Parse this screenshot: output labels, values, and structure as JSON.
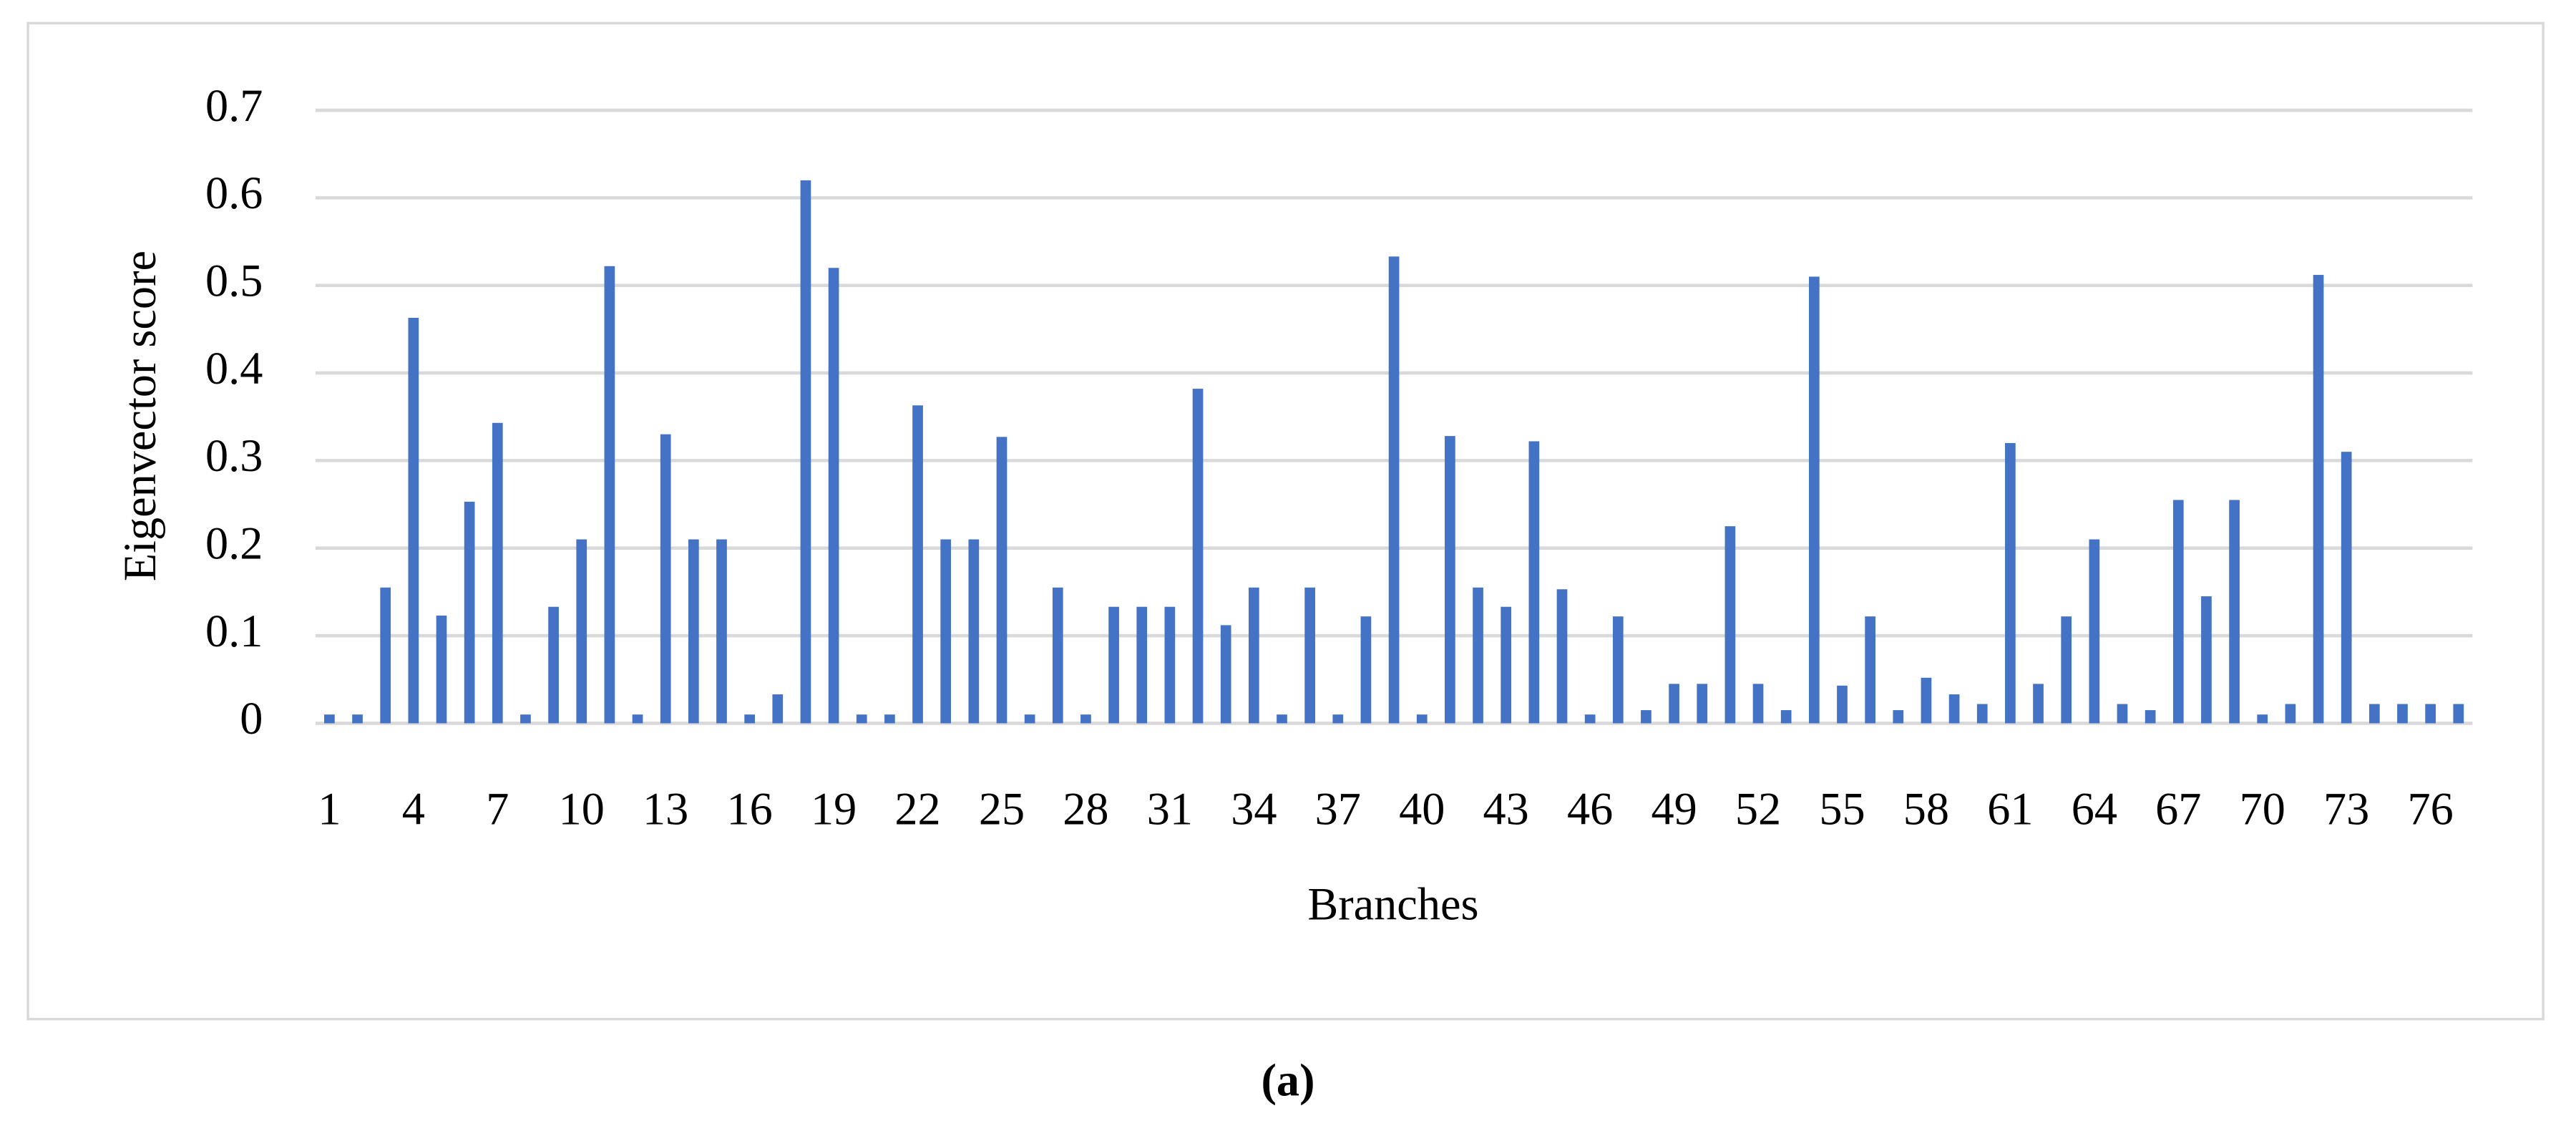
{
  "chart_data": {
    "type": "bar",
    "x_label": "Branches",
    "y_label": "Eigenvector score",
    "caption": "(a)",
    "categories": [
      "1",
      null,
      null,
      "4",
      null,
      null,
      "7",
      null,
      null,
      "10",
      null,
      null,
      "13",
      null,
      null,
      "16",
      null,
      null,
      "19",
      null,
      null,
      "22",
      null,
      null,
      "25",
      null,
      null,
      "28",
      null,
      null,
      "31",
      null,
      null,
      "34",
      null,
      null,
      "37",
      null,
      null,
      "40",
      null,
      null,
      "43",
      null,
      null,
      "46",
      null,
      null,
      "49",
      null,
      null,
      "52",
      null,
      null,
      "55",
      null,
      null,
      "58",
      null,
      null,
      "61",
      null,
      null,
      "64",
      null,
      null,
      "67",
      null,
      null,
      "70",
      null,
      null,
      "73",
      null,
      null,
      "76",
      null
    ],
    "values": [
      0.01,
      0.01,
      0.155,
      0.463,
      0.123,
      0.253,
      0.343,
      0.01,
      0.133,
      0.21,
      0.522,
      0.01,
      0.33,
      0.21,
      0.21,
      0.01,
      0.033,
      0.62,
      0.52,
      0.01,
      0.01,
      0.363,
      0.21,
      0.21,
      0.327,
      0.01,
      0.155,
      0.01,
      0.133,
      0.133,
      0.133,
      0.382,
      0.112,
      0.155,
      0.01,
      0.155,
      0.01,
      0.122,
      0.533,
      0.01,
      0.328,
      0.155,
      0.133,
      0.322,
      0.153,
      0.01,
      0.122,
      0.015,
      0.045,
      0.045,
      0.225,
      0.045,
      0.015,
      0.51,
      0.043,
      0.122,
      0.015,
      0.052,
      0.033,
      0.022,
      0.32,
      0.045,
      0.122,
      0.21,
      0.022,
      0.015,
      0.255,
      0.145,
      0.255,
      0.01,
      0.022,
      0.512,
      0.31,
      0.022,
      0.022,
      0.022,
      0.022
    ],
    "color": "#4472c4",
    "ylim": [
      0,
      0.7
    ],
    "yticks": [
      0,
      0.1,
      0.2,
      0.3,
      0.4,
      0.5,
      0.6,
      0.7
    ],
    "grid": true
  }
}
